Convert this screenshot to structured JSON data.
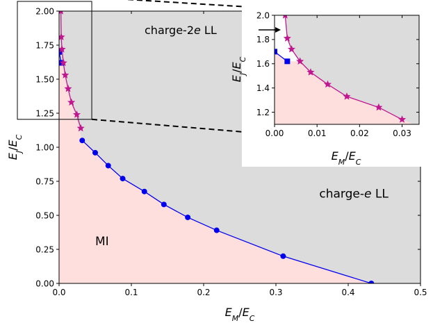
{
  "chart_data": [
    {
      "type": "line",
      "xlabel": "E_M/E_C",
      "ylabel": "E_J/E_C",
      "xlim": [
        0.0,
        0.5
      ],
      "ylim": [
        0.0,
        2.0
      ],
      "xticks": [
        0.0,
        0.1,
        0.2,
        0.3,
        0.4,
        0.5
      ],
      "xtick_labels": [
        "0.0",
        "0.1",
        "0.2",
        "0.3",
        "0.4",
        "0.5"
      ],
      "yticks": [
        0.0,
        0.25,
        0.5,
        0.75,
        1.0,
        1.25,
        1.5,
        1.75,
        2.0
      ],
      "ytick_labels": [
        "0.00",
        "0.25",
        "0.50",
        "0.75",
        "1.00",
        "1.25",
        "1.50",
        "1.75",
        "2.00"
      ],
      "grid": false,
      "background_color": "#dcdcdc",
      "series": [
        {
          "marker": "circle",
          "color": "#0000ee",
          "x": [
            0.032,
            0.05,
            0.068,
            0.088,
            0.118,
            0.145,
            0.178,
            0.218,
            0.31,
            0.432
          ],
          "y": [
            1.05,
            0.96,
            0.865,
            0.77,
            0.675,
            0.58,
            0.485,
            0.39,
            0.2,
            0.0
          ]
        },
        {
          "marker": "square",
          "color": "#0000ee",
          "x": [
            0.0,
            0.003
          ],
          "y": [
            1.7,
            1.62
          ]
        },
        {
          "marker": "star",
          "color": "#c0168f",
          "x": [
            0.0025,
            0.003,
            0.004,
            0.006,
            0.0085,
            0.0125,
            0.017,
            0.0245,
            0.03
          ],
          "y": [
            2.0,
            1.81,
            1.72,
            1.62,
            1.53,
            1.43,
            1.33,
            1.24,
            1.14
          ]
        }
      ],
      "regions": [
        {
          "label": "MI",
          "color": "#ffdede",
          "x": 0.05,
          "y": 0.28
        },
        {
          "label": "charge-e LL",
          "color": "#dcdcdc",
          "x": 0.36,
          "y": 0.63
        }
      ]
    },
    {
      "type": "line",
      "role": "inset",
      "xlabel": "E_M/E_C",
      "ylabel": "E_J/E_C",
      "xlim": [
        0.0,
        0.034
      ],
      "ylim": [
        1.1,
        2.0
      ],
      "xticks": [
        0.0,
        0.01,
        0.02,
        0.03
      ],
      "xtick_labels": [
        "0.00",
        "0.01",
        "0.02",
        "0.03"
      ],
      "yticks": [
        1.2,
        1.4,
        1.6,
        1.8,
        2.0
      ],
      "ytick_labels": [
        "1.2",
        "1.4",
        "1.6",
        "1.8",
        "2.0"
      ],
      "annotation": "charge-2e LL",
      "zoom_box": {
        "xlim": [
          0.0,
          0.026
        ],
        "ylim": [
          1.2,
          2.0
        ]
      }
    }
  ]
}
